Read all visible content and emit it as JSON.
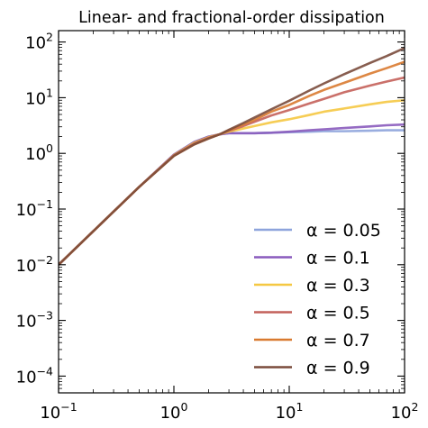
{
  "chart_data": {
    "type": "line",
    "title": "Linear- and fractional-order dissipation",
    "xlabel": "",
    "ylabel": "",
    "xscale": "log",
    "yscale": "log",
    "xlim": [
      0.1,
      100
    ],
    "ylim": [
      5e-05,
      160
    ],
    "grid": false,
    "legend_position": "lower-right",
    "x_ticks": [
      {
        "base": "10",
        "exp": "−1",
        "value": 0.1
      },
      {
        "base": "10",
        "exp": "0",
        "value": 1
      },
      {
        "base": "10",
        "exp": "1",
        "value": 10
      },
      {
        "base": "10",
        "exp": "2",
        "value": 100
      }
    ],
    "y_ticks": [
      {
        "base": "10",
        "exp": "−4",
        "value": 0.0001
      },
      {
        "base": "10",
        "exp": "−3",
        "value": 0.001
      },
      {
        "base": "10",
        "exp": "−2",
        "value": 0.01
      },
      {
        "base": "10",
        "exp": "−1",
        "value": 0.1
      },
      {
        "base": "10",
        "exp": "0",
        "value": 1
      },
      {
        "base": "10",
        "exp": "1",
        "value": 10
      },
      {
        "base": "10",
        "exp": "2",
        "value": 100
      }
    ],
    "x": [
      0.1,
      0.2,
      0.5,
      1,
      1.5,
      2,
      2.5,
      3,
      4,
      5,
      7,
      10,
      15,
      20,
      30,
      50,
      70,
      100
    ],
    "series": [
      {
        "name": "α = 0.05",
        "color": "#8ea4dc",
        "values": [
          0.01,
          0.04,
          0.25,
          0.95,
          1.6,
          2.0,
          2.2,
          2.3,
          2.3,
          2.3,
          2.35,
          2.4,
          2.45,
          2.5,
          2.5,
          2.55,
          2.6,
          2.6
        ]
      },
      {
        "name": "α = 0.1",
        "color": "#8a5bbd",
        "values": [
          0.01,
          0.04,
          0.25,
          0.95,
          1.6,
          2.0,
          2.2,
          2.3,
          2.3,
          2.3,
          2.35,
          2.45,
          2.6,
          2.7,
          2.85,
          3.05,
          3.2,
          3.3
        ]
      },
      {
        "name": "α = 0.3",
        "color": "#f5c842",
        "values": [
          0.01,
          0.04,
          0.25,
          0.93,
          1.55,
          1.95,
          2.2,
          2.45,
          2.8,
          3.1,
          3.6,
          4.1,
          4.9,
          5.6,
          6.4,
          7.6,
          8.4,
          9.0
        ]
      },
      {
        "name": "α = 0.5",
        "color": "#c4605a",
        "values": [
          0.01,
          0.04,
          0.25,
          0.92,
          1.5,
          1.9,
          2.2,
          2.55,
          3.1,
          3.7,
          4.8,
          6.0,
          7.9,
          9.5,
          12.5,
          16.5,
          19.5,
          23.0
        ]
      },
      {
        "name": "α = 0.7",
        "color": "#d97a30",
        "values": [
          0.01,
          0.04,
          0.25,
          0.9,
          1.45,
          1.85,
          2.2,
          2.6,
          3.3,
          4.0,
          5.6,
          7.4,
          10.8,
          13.8,
          18.5,
          27.0,
          34.0,
          44.0
        ]
      },
      {
        "name": "α = 0.9",
        "color": "#7a4b3c",
        "values": [
          0.01,
          0.04,
          0.25,
          0.9,
          1.45,
          1.85,
          2.2,
          2.65,
          3.5,
          4.4,
          6.2,
          8.8,
          13.5,
          18.0,
          26.5,
          42.0,
          56.0,
          78.0
        ]
      }
    ]
  }
}
